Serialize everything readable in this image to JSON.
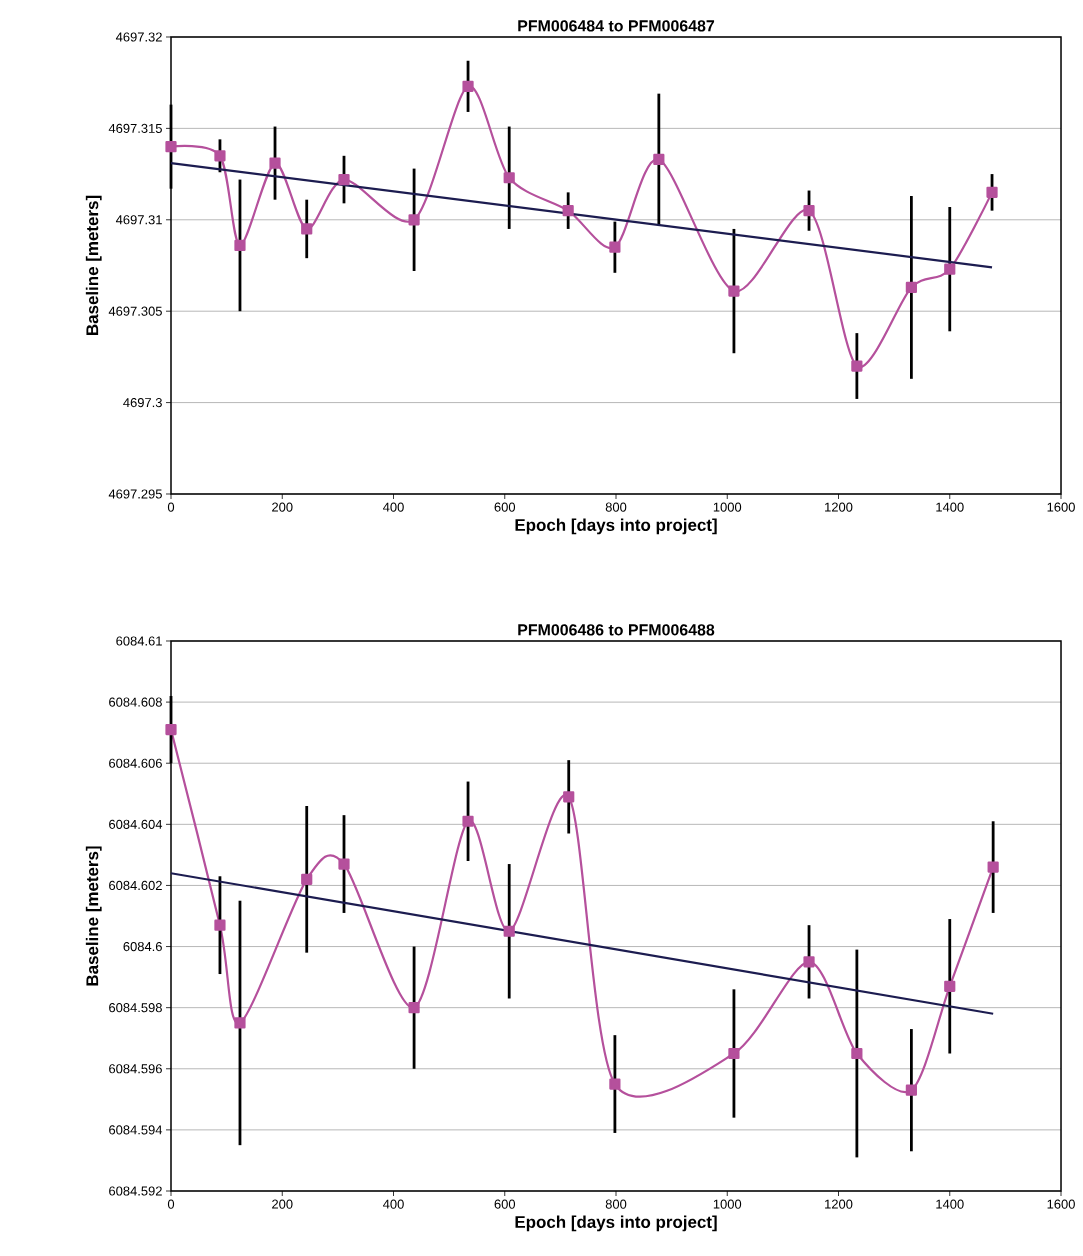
{
  "chart_data": [
    {
      "type": "line",
      "title": "PFM006484 to PFM006487",
      "xlabel": "Epoch [days into project]",
      "ylabel": "Baseline [meters]",
      "xlim": [
        0,
        1600
      ],
      "xticks": [
        0,
        200,
        400,
        600,
        800,
        1000,
        1200,
        1400,
        1600
      ],
      "ylim": [
        4697.295,
        4697.32
      ],
      "yticks": [
        4697.295,
        4697.3,
        4697.305,
        4697.31,
        4697.315,
        4697.32
      ],
      "grid": "y",
      "series": [
        {
          "color": "#b5509c",
          "marker": "square",
          "x": [
            0,
            88,
            124,
            187,
            244,
            311,
            437,
            534,
            608,
            714,
            798,
            877,
            1012,
            1147,
            1233,
            1331,
            1400,
            1476
          ],
          "values": [
            4697.314,
            4697.3135,
            4697.3086,
            4697.3131,
            4697.3095,
            4697.3122,
            4697.31,
            4697.3173,
            4697.3123,
            4697.3105,
            4697.3085,
            4697.3133,
            4697.3061,
            4697.3105,
            4697.302,
            4697.3063,
            4697.3073,
            4697.3115
          ],
          "errors": [
            0.0023,
            0.0009,
            0.0036,
            0.002,
            0.0016,
            0.0013,
            0.0028,
            0.0014,
            0.0028,
            0.001,
            0.0014,
            0.0036,
            0.0034,
            0.0011,
            0.0018,
            0.005,
            0.0034,
            0.001
          ]
        },
        {
          "color": "#1c1c50",
          "marker": "none",
          "x": [
            0,
            1476
          ],
          "values": [
            4697.3131,
            4697.3074
          ]
        }
      ]
    },
    {
      "type": "line",
      "title": "PFM006486 to PFM006488",
      "xlabel": "Epoch [days into project]",
      "ylabel": "Baseline [meters]",
      "xlim": [
        0,
        1600
      ],
      "xticks": [
        0,
        200,
        400,
        600,
        800,
        1000,
        1200,
        1400,
        1600
      ],
      "ylim": [
        6084.592,
        6084.61
      ],
      "yticks": [
        6084.592,
        6084.594,
        6084.596,
        6084.598,
        6084.6,
        6084.602,
        6084.604,
        6084.606,
        6084.608,
        6084.61
      ],
      "grid": "y",
      "series": [
        {
          "color": "#b5509c",
          "marker": "square",
          "x": [
            0,
            88,
            124,
            244,
            311,
            437,
            534,
            608,
            715,
            798,
            1012,
            1147,
            1233,
            1331,
            1400,
            1478
          ],
          "values": [
            6084.6071,
            6084.6007,
            6084.5975,
            6084.6022,
            6084.6027,
            6084.598,
            6084.6041,
            6084.6005,
            6084.6049,
            6084.5955,
            6084.5965,
            6084.5995,
            6084.5965,
            6084.5953,
            6084.5987,
            6084.6026
          ],
          "errors": [
            0.0011,
            0.0016,
            0.004,
            0.0024,
            0.0016,
            0.002,
            0.0013,
            0.0022,
            0.0012,
            0.0016,
            0.0021,
            0.0012,
            0.0034,
            0.002,
            0.0022,
            0.0015
          ]
        },
        {
          "color": "#1c1c50",
          "marker": "none",
          "x": [
            0,
            1478
          ],
          "values": [
            6084.6024,
            6084.5978
          ]
        }
      ]
    }
  ]
}
